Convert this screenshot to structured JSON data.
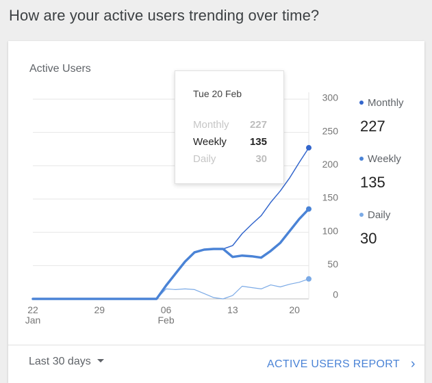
{
  "question": "How are your active users trending over time?",
  "card": {
    "title": "Active Users",
    "range_label": "Last 30 days",
    "report_label": "ACTIVE USERS REPORT",
    "report_icon": "chevron-right-icon"
  },
  "tooltip": {
    "date": "Tue 20 Feb",
    "rows": [
      {
        "label": "Monthly",
        "value": "227"
      },
      {
        "label": "Weekly",
        "value": "135"
      },
      {
        "label": "Daily",
        "value": "30"
      }
    ]
  },
  "legend": [
    {
      "label": "Monthly",
      "value": "227",
      "color": "#3366cc"
    },
    {
      "label": "Weekly",
      "value": "135",
      "color": "#4a83d6"
    },
    {
      "label": "Daily",
      "value": "30",
      "color": "#7baae6"
    }
  ],
  "chart_data": {
    "type": "line",
    "title": "Active Users",
    "x_tick_labels": [
      {
        "top": "22",
        "bottom": "Jan"
      },
      {
        "top": "29",
        "bottom": ""
      },
      {
        "top": "06",
        "bottom": "Feb"
      },
      {
        "top": "13",
        "bottom": ""
      },
      {
        "top": "20",
        "bottom": ""
      }
    ],
    "y_ticks": [
      0,
      50,
      100,
      150,
      200,
      250,
      300
    ],
    "ylim": [
      0,
      300
    ],
    "x": [
      "2024-01-22",
      "2024-01-23",
      "2024-01-24",
      "2024-01-25",
      "2024-01-26",
      "2024-01-27",
      "2024-01-28",
      "2024-01-29",
      "2024-01-30",
      "2024-01-31",
      "2024-02-01",
      "2024-02-02",
      "2024-02-03",
      "2024-02-04",
      "2024-02-05",
      "2024-02-06",
      "2024-02-07",
      "2024-02-08",
      "2024-02-09",
      "2024-02-10",
      "2024-02-11",
      "2024-02-12",
      "2024-02-13",
      "2024-02-14",
      "2024-02-15",
      "2024-02-16",
      "2024-02-17",
      "2024-02-18",
      "2024-02-19",
      "2024-02-20"
    ],
    "series": [
      {
        "name": "Monthly",
        "color": "#3366cc",
        "width": 1.5,
        "values": [
          0,
          0,
          0,
          0,
          0,
          0,
          0,
          0,
          0,
          0,
          0,
          0,
          0,
          0,
          20,
          38,
          56,
          70,
          74,
          75,
          75,
          80,
          98,
          112,
          125,
          145,
          162,
          182,
          205,
          227
        ]
      },
      {
        "name": "Weekly",
        "color": "#4a83d6",
        "width": 3.5,
        "values": [
          0,
          0,
          0,
          0,
          0,
          0,
          0,
          0,
          0,
          0,
          0,
          0,
          0,
          0,
          20,
          38,
          56,
          70,
          74,
          75,
          75,
          63,
          65,
          64,
          62,
          72,
          84,
          102,
          120,
          135
        ]
      },
      {
        "name": "Daily",
        "color": "#7baae6",
        "width": 1.2,
        "values": [
          0,
          0,
          0,
          0,
          0,
          0,
          0,
          0,
          0,
          0,
          0,
          0,
          0,
          0,
          15,
          14,
          15,
          14,
          8,
          2,
          0,
          5,
          19,
          17,
          15,
          21,
          18,
          22,
          25,
          30
        ]
      }
    ],
    "grid": true,
    "legend": "right"
  }
}
